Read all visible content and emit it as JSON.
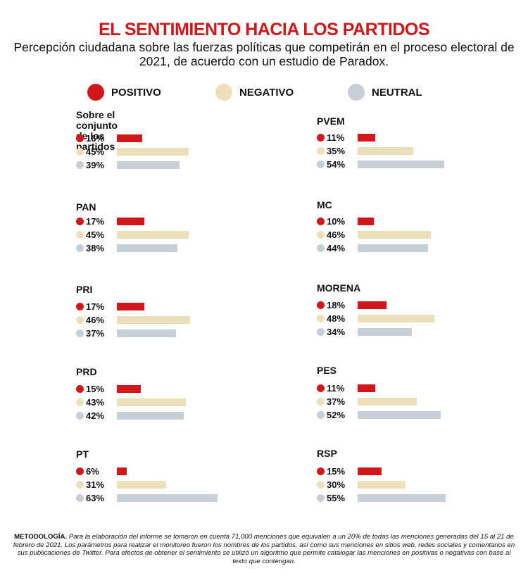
{
  "title": "EL SENTIMIENTO HACIA LOS PARTIDOS",
  "subtitle": "Percepción ciudadana sobre las fuerzas políticas que competirán en el proceso electoral de 2021, de acuerdo con un estudio de Paradox.",
  "legend": [
    {
      "label": "POSITIVO",
      "color": "#d0181c"
    },
    {
      "label": "NEGATIVO",
      "color": "#ece0bb"
    },
    {
      "label": "NEUTRAL",
      "color": "#c6cfd6"
    }
  ],
  "chart_data": {
    "type": "bar",
    "orientation": "horizontal",
    "title": "EL SENTIMIENTO HACIA LOS PARTIDOS",
    "series_names": [
      "POSITIVO",
      "NEGATIVO",
      "NEUTRAL"
    ],
    "unit": "%",
    "xlim": [
      0,
      100
    ],
    "groups": [
      {
        "name": "Sobre el conjunto\nde los partidos",
        "values": [
          16,
          45,
          39
        ],
        "labels": [
          "16%",
          "45%",
          "39%"
        ]
      },
      {
        "name": "PAN",
        "values": [
          17,
          45,
          38
        ],
        "labels": [
          "17%",
          "45%",
          "38%"
        ]
      },
      {
        "name": "PRI",
        "values": [
          17,
          46,
          37
        ],
        "labels": [
          "17%",
          "46%",
          "37%"
        ]
      },
      {
        "name": "PRD",
        "values": [
          15,
          43,
          42
        ],
        "labels": [
          "15%",
          "43%",
          "42%"
        ]
      },
      {
        "name": "PT",
        "values": [
          6,
          31,
          63
        ],
        "labels": [
          "6%",
          "31%",
          "63%"
        ]
      },
      {
        "name": "PVEM",
        "values": [
          11,
          35,
          54
        ],
        "labels": [
          "11%",
          "35%",
          "54%"
        ]
      },
      {
        "name": "MC",
        "values": [
          10,
          46,
          44
        ],
        "labels": [
          "10%",
          "46%",
          "44%"
        ]
      },
      {
        "name": "MORENA",
        "values": [
          18,
          48,
          34
        ],
        "labels": [
          "18%",
          "48%",
          "34%"
        ]
      },
      {
        "name": "PES",
        "values": [
          11,
          37,
          52
        ],
        "labels": [
          "11%",
          "37%",
          "52%"
        ]
      },
      {
        "name": "RSP",
        "values": [
          15,
          30,
          55
        ],
        "labels": [
          "15%",
          "30%",
          "55%"
        ]
      }
    ]
  },
  "methodology": {
    "label": "METODOLOGÍA.",
    "text": "Para la elaboración del informe se tomaron en cuenta 71,000 menciones que equivalen a un 20% de todas las menciones generadas del 15 al 21 de febrero de 2021. Los parámetros para realizar el monitoreo fueron los nombres de los partidos, así como sus menciones en sitios web, redes sociales y comentarios en sus publicaciones de Twitter. Para efectos de obtener el sentimiento se utilizó un algoritmo que permite catalogar las menciones en positivas o negativas con base al texto que contengan."
  }
}
